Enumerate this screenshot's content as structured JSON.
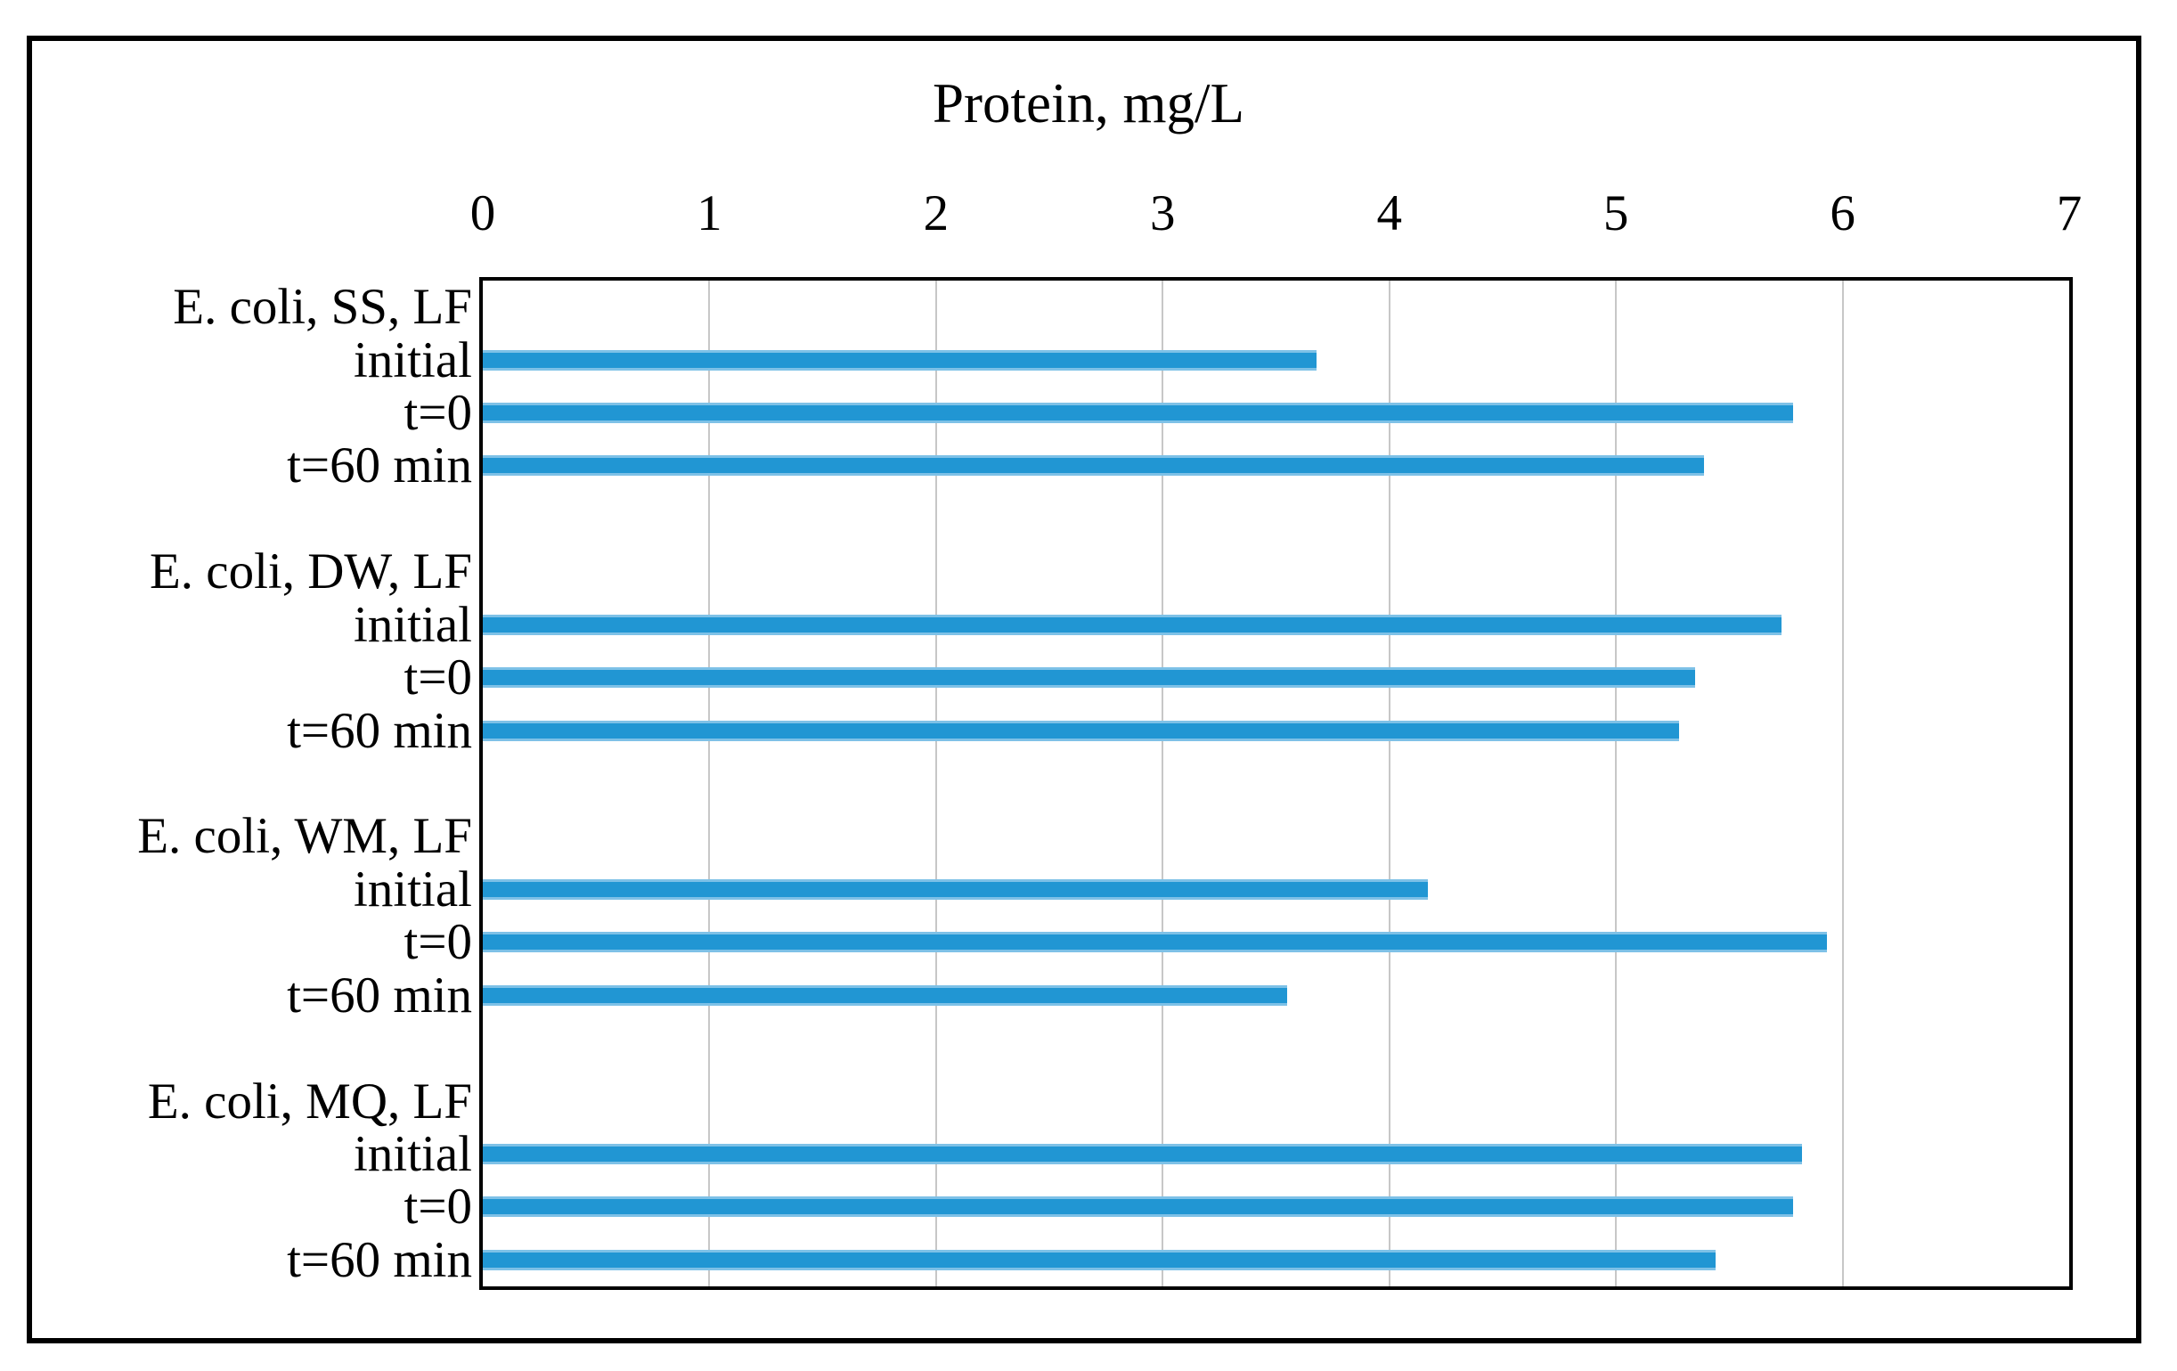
{
  "figure": {
    "background": "#ffffff",
    "frame_color": "#000000"
  },
  "chart_data": {
    "type": "bar",
    "orientation": "horizontal",
    "title": "Protein, mg/L",
    "xlabel": "Protein, mg/L",
    "ylabel": "",
    "xlim": [
      0,
      7
    ],
    "xticks": [
      0,
      1,
      2,
      3,
      4,
      5,
      6,
      7
    ],
    "grid": true,
    "gridline_color": "#c7c7c7",
    "bar_color": "#2196d3",
    "legend": null,
    "groups": [
      {
        "label": "E. coli, SS, LF",
        "rows": [
          {
            "label": "initial",
            "value": 3.68
          },
          {
            "label": "t=0",
            "value": 5.78
          },
          {
            "label": "t=60 min",
            "value": 5.39
          }
        ]
      },
      {
        "label": "E. coli, DW, LF",
        "rows": [
          {
            "label": "initial",
            "value": 5.73
          },
          {
            "label": "t=0",
            "value": 5.35
          },
          {
            "label": "t=60 min",
            "value": 5.28
          }
        ]
      },
      {
        "label": "E. coli, WM, LF",
        "rows": [
          {
            "label": "initial",
            "value": 4.17
          },
          {
            "label": "t=0",
            "value": 5.93
          },
          {
            "label": "t=60 min",
            "value": 3.55
          }
        ]
      },
      {
        "label": "E. coli, MQ, LF",
        "rows": [
          {
            "label": "initial",
            "value": 5.82
          },
          {
            "label": "t=0",
            "value": 5.78
          },
          {
            "label": "t=60 min",
            "value": 5.44
          }
        ]
      }
    ]
  }
}
